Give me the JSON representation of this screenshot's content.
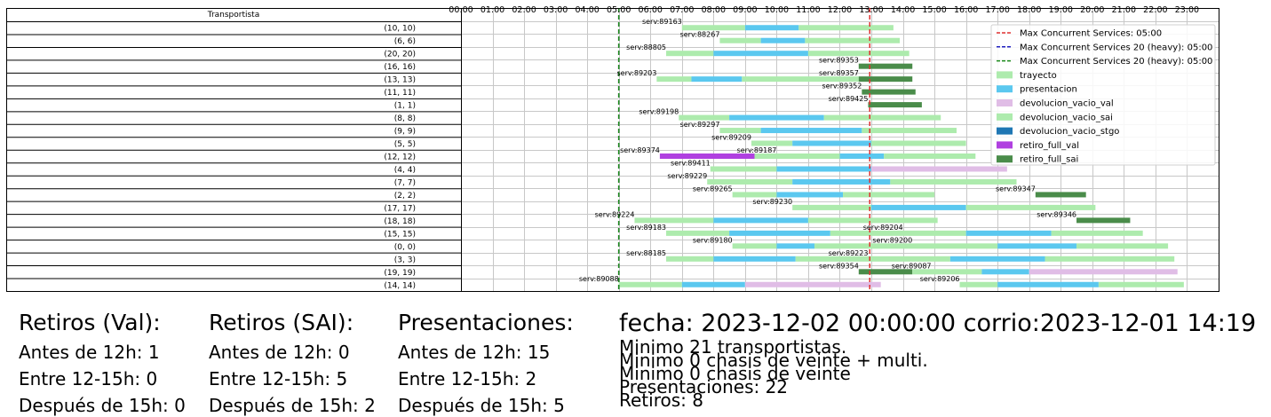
{
  "chart_data": {
    "type": "gantt",
    "table_header": "Transportista",
    "x_ticks": [
      "00:00",
      "01:00",
      "02:00",
      "03:00",
      "04:00",
      "05:00",
      "06:00",
      "07:00",
      "08:00",
      "09:00",
      "10:00",
      "11:00",
      "12:00",
      "13:00",
      "14:00",
      "15:00",
      "16:00",
      "17:00",
      "18:00",
      "19:00",
      "20:00",
      "21:00",
      "22:00",
      "23:00"
    ],
    "xlim": [
      0,
      24
    ],
    "grid": true,
    "legend_position": "top-right",
    "colors": {
      "trayecto": "#adebad",
      "presentacion": "#5bc8ef",
      "devolucion_vacio_val": "#e0bde6",
      "devolucion_vacio_sai": "#adebad",
      "devolucion_vacio_stgo": "#1f77b4",
      "retiro_full_val": "#b040e0",
      "retiro_full_sai": "#4a8c4a"
    },
    "vlines": [
      {
        "label": "Max Concurrent Services: 05:00",
        "x": 5.0,
        "color": "#e03030",
        "style": "dashed"
      },
      {
        "label": "Max Concurrent Services 20 (heavy): 05:00",
        "x": 5.0,
        "color": "#2020c0",
        "style": "dashed"
      },
      {
        "label": "Max Concurrent Services 20 (heavy): 05:00",
        "x": 5.0,
        "color": "#1a8a1a",
        "style": "dashed"
      },
      {
        "label": "",
        "x": 12.95,
        "color": "#e03030",
        "style": "dashed"
      }
    ],
    "legend": [
      {
        "label": "Max Concurrent Services: 05:00",
        "kind": "line",
        "color": "#e03030"
      },
      {
        "label": "Max Concurrent Services 20 (heavy): 05:00",
        "kind": "line",
        "color": "#2020c0"
      },
      {
        "label": "Max Concurrent Services 20 (heavy): 05:00",
        "kind": "line",
        "color": "#1a8a1a"
      },
      {
        "label": "trayecto",
        "kind": "patch",
        "color": "#adebad"
      },
      {
        "label": "presentacion",
        "kind": "patch",
        "color": "#5bc8ef"
      },
      {
        "label": "devolucion_vacio_val",
        "kind": "patch",
        "color": "#e0bde6"
      },
      {
        "label": "devolucion_vacio_sai",
        "kind": "patch",
        "color": "#adebad"
      },
      {
        "label": "devolucion_vacio_stgo",
        "kind": "patch",
        "color": "#1f77b4"
      },
      {
        "label": "retiro_full_val",
        "kind": "patch",
        "color": "#b040e0"
      },
      {
        "label": "retiro_full_sai",
        "kind": "patch",
        "color": "#4a8c4a"
      }
    ],
    "rows": [
      {
        "label": "(10, 10)",
        "segments": [
          [
            "trayecto",
            7.0,
            9.0
          ],
          [
            "presentacion",
            9.0,
            10.7
          ],
          [
            "trayecto",
            10.7,
            13.7
          ]
        ],
        "labels": [
          [
            "serv:89163",
            7.0
          ]
        ]
      },
      {
        "label": "(6, 6)",
        "segments": [
          [
            "trayecto",
            8.2,
            9.5
          ],
          [
            "presentacion",
            9.5,
            10.9
          ],
          [
            "trayecto",
            10.9,
            13.9
          ]
        ],
        "labels": [
          [
            "serv:88267",
            8.2
          ]
        ]
      },
      {
        "label": "(20, 20)",
        "segments": [
          [
            "trayecto",
            6.5,
            8.0
          ],
          [
            "presentacion",
            8.0,
            11.0
          ],
          [
            "trayecto",
            11.0,
            14.2
          ]
        ],
        "labels": [
          [
            "serv:88805",
            6.5
          ]
        ]
      },
      {
        "label": "(16, 16)",
        "segments": [
          [
            "retiro_full_sai",
            12.6,
            14.3
          ]
        ],
        "labels": [
          [
            "serv:89353",
            12.6
          ]
        ]
      },
      {
        "label": "(13, 13)",
        "segments": [
          [
            "trayecto",
            6.2,
            7.3
          ],
          [
            "presentacion",
            7.3,
            8.9
          ],
          [
            "trayecto",
            8.9,
            12.6
          ],
          [
            "retiro_full_sai",
            12.6,
            14.3
          ]
        ],
        "labels": [
          [
            "serv:89203",
            6.2
          ],
          [
            "serv:89357",
            12.6
          ]
        ]
      },
      {
        "label": "(11, 11)",
        "segments": [
          [
            "retiro_full_sai",
            12.7,
            14.4
          ]
        ],
        "labels": [
          [
            "serv:89352",
            12.7
          ]
        ]
      },
      {
        "label": "(1, 1)",
        "segments": [
          [
            "retiro_full_sai",
            12.9,
            14.6
          ]
        ],
        "labels": [
          [
            "serv:89425",
            12.9
          ]
        ]
      },
      {
        "label": "(8, 8)",
        "segments": [
          [
            "trayecto",
            6.9,
            8.5
          ],
          [
            "presentacion",
            8.5,
            11.5
          ],
          [
            "trayecto",
            11.5,
            15.2
          ]
        ],
        "labels": [
          [
            "serv:89198",
            6.9
          ]
        ]
      },
      {
        "label": "(9, 9)",
        "segments": [
          [
            "trayecto",
            8.2,
            9.5
          ],
          [
            "presentacion",
            9.5,
            12.7
          ],
          [
            "trayecto",
            12.7,
            15.7
          ]
        ],
        "labels": [
          [
            "serv:89297",
            8.2
          ]
        ]
      },
      {
        "label": "(5, 5)",
        "segments": [
          [
            "trayecto",
            9.2,
            10.5
          ],
          [
            "presentacion",
            10.5,
            13.0
          ],
          [
            "trayecto",
            13.0,
            16.0
          ]
        ],
        "labels": [
          [
            "serv:89209",
            9.2
          ]
        ]
      },
      {
        "label": "(12, 12)",
        "segments": [
          [
            "retiro_full_val",
            6.3,
            9.3
          ],
          [
            "trayecto",
            9.3,
            12.0
          ],
          [
            "presentacion",
            12.0,
            13.4
          ],
          [
            "trayecto",
            13.4,
            16.3
          ]
        ],
        "labels": [
          [
            "serv:89374",
            6.3
          ],
          [
            "serv:89187",
            10.0
          ]
        ]
      },
      {
        "label": "(4, 4)",
        "segments": [
          [
            "trayecto",
            7.9,
            10.0
          ],
          [
            "presentacion",
            10.0,
            13.0
          ],
          [
            "devolucion_vacio_val",
            13.0,
            17.3
          ]
        ],
        "labels": [
          [
            "serv:89411",
            7.9
          ]
        ]
      },
      {
        "label": "(7, 7)",
        "segments": [
          [
            "trayecto",
            7.8,
            10.5
          ],
          [
            "presentacion",
            10.5,
            13.6
          ],
          [
            "trayecto",
            13.6,
            17.6
          ]
        ],
        "labels": [
          [
            "serv:89229",
            7.8
          ]
        ]
      },
      {
        "label": "(2, 2)",
        "segments": [
          [
            "trayecto",
            8.6,
            10.0
          ],
          [
            "presentacion",
            10.0,
            12.1
          ],
          [
            "trayecto",
            12.1,
            15.0
          ],
          [
            "retiro_full_sai",
            18.2,
            19.8
          ]
        ],
        "labels": [
          [
            "serv:89265",
            8.6
          ],
          [
            "serv:89347",
            18.2
          ]
        ]
      },
      {
        "label": "(17, 17)",
        "segments": [
          [
            "trayecto",
            10.5,
            13.0
          ],
          [
            "presentacion",
            13.0,
            16.0
          ],
          [
            "trayecto",
            16.0,
            20.1
          ]
        ],
        "labels": [
          [
            "serv:89230",
            10.5
          ]
        ]
      },
      {
        "label": "(18, 18)",
        "segments": [
          [
            "trayecto",
            5.5,
            8.0
          ],
          [
            "presentacion",
            8.0,
            11.0
          ],
          [
            "trayecto",
            11.0,
            15.1
          ],
          [
            "retiro_full_sai",
            19.5,
            21.2
          ]
        ],
        "labels": [
          [
            "serv:89224",
            5.5
          ],
          [
            "serv:89346",
            19.5
          ]
        ]
      },
      {
        "label": "(15, 15)",
        "segments": [
          [
            "trayecto",
            6.5,
            8.5
          ],
          [
            "presentacion",
            8.5,
            11.7
          ],
          [
            "trayecto",
            11.7,
            16.0
          ],
          [
            "presentacion",
            16.0,
            18.7
          ],
          [
            "trayecto",
            18.7,
            21.6
          ]
        ],
        "labels": [
          [
            "serv:89183",
            6.5
          ],
          [
            "serv:89204",
            14.0
          ]
        ]
      },
      {
        "label": "(0, 0)",
        "segments": [
          [
            "trayecto",
            8.6,
            10.0
          ],
          [
            "presentacion",
            10.0,
            11.2
          ],
          [
            "trayecto",
            11.2,
            17.0
          ],
          [
            "presentacion",
            17.0,
            19.5
          ],
          [
            "trayecto",
            19.5,
            22.4
          ]
        ],
        "labels": [
          [
            "serv:89180",
            8.6
          ],
          [
            "serv:89200",
            14.3
          ]
        ]
      },
      {
        "label": "(3, 3)",
        "segments": [
          [
            "trayecto",
            6.5,
            8.0
          ],
          [
            "presentacion",
            8.0,
            10.6
          ],
          [
            "trayecto",
            10.6,
            15.5
          ],
          [
            "presentacion",
            15.5,
            18.5
          ],
          [
            "trayecto",
            18.5,
            22.6
          ]
        ],
        "labels": [
          [
            "serv:88185",
            6.5
          ],
          [
            "serv:89223",
            12.9
          ]
        ]
      },
      {
        "label": "(19, 19)",
        "segments": [
          [
            "retiro_full_sai",
            12.6,
            14.3
          ],
          [
            "trayecto",
            14.3,
            16.5
          ],
          [
            "presentacion",
            16.5,
            18.0
          ],
          [
            "devolucion_vacio_val",
            18.0,
            22.7
          ]
        ],
        "labels": [
          [
            "serv:89354",
            12.6
          ],
          [
            "serv:89087",
            14.9
          ]
        ]
      },
      {
        "label": "(14, 14)",
        "segments": [
          [
            "trayecto",
            5.0,
            7.0
          ],
          [
            "presentacion",
            7.0,
            9.0
          ],
          [
            "devolucion_vacio_val",
            9.0,
            13.3
          ],
          [
            "trayecto",
            15.8,
            17.0
          ],
          [
            "presentacion",
            17.0,
            20.2
          ],
          [
            "trayecto",
            20.2,
            22.9
          ]
        ],
        "labels": [
          [
            "serv:89088",
            5.0
          ],
          [
            "serv:89206",
            15.8
          ]
        ]
      }
    ]
  },
  "summary": [
    {
      "title": "Retiros (Val):",
      "lines": [
        "Antes de 12h: 1",
        "Entre 12-15h: 0",
        "Después de 15h: 0"
      ]
    },
    {
      "title": "Retiros (SAI):",
      "lines": [
        "Antes de 12h: 0",
        "Entre 12-15h: 5",
        "Después de 15h: 2"
      ]
    },
    {
      "title": "Presentaciones:",
      "lines": [
        "Antes de 12h: 15",
        "Entre 12-15h: 2",
        "Después de 15h: 5"
      ]
    }
  ],
  "info": {
    "header": "fecha: 2023-12-02 00:00:00  corrio:2023-12-01 14:19",
    "lines": [
      "Minimo 21 transportistas.",
      "Minimo 0 chasis de veinte + multi.",
      "Minimo 0 chasis de veinte",
      "Presentaciones: 22",
      "Retiros: 8"
    ]
  }
}
